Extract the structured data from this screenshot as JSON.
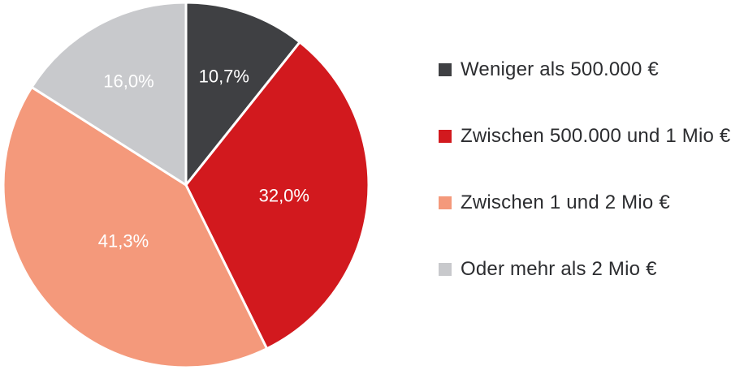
{
  "chart_data": {
    "type": "pie",
    "labels": [
      "Weniger als 500.000 €",
      "Zwischen 500.000 und 1 Mio €",
      "Zwischen 1 und 2 Mio €",
      "Oder mehr als 2 Mio €"
    ],
    "values": [
      10.7,
      32.0,
      41.3,
      16.0
    ],
    "value_labels": [
      "10,7%",
      "32,0%",
      "41,3%",
      "16,0%"
    ],
    "colors": [
      "#3f4043",
      "#d2191e",
      "#f4997b",
      "#c8c9cc"
    ],
    "stroke_color": "#ffffff",
    "label_color": "#ffffff",
    "start_angle_deg": 0,
    "direction": "clockwise",
    "label_radius_fractions": [
      0.63,
      0.54,
      0.46,
      0.65
    ],
    "legend_position": "right",
    "background": "#ffffff",
    "title": ""
  }
}
